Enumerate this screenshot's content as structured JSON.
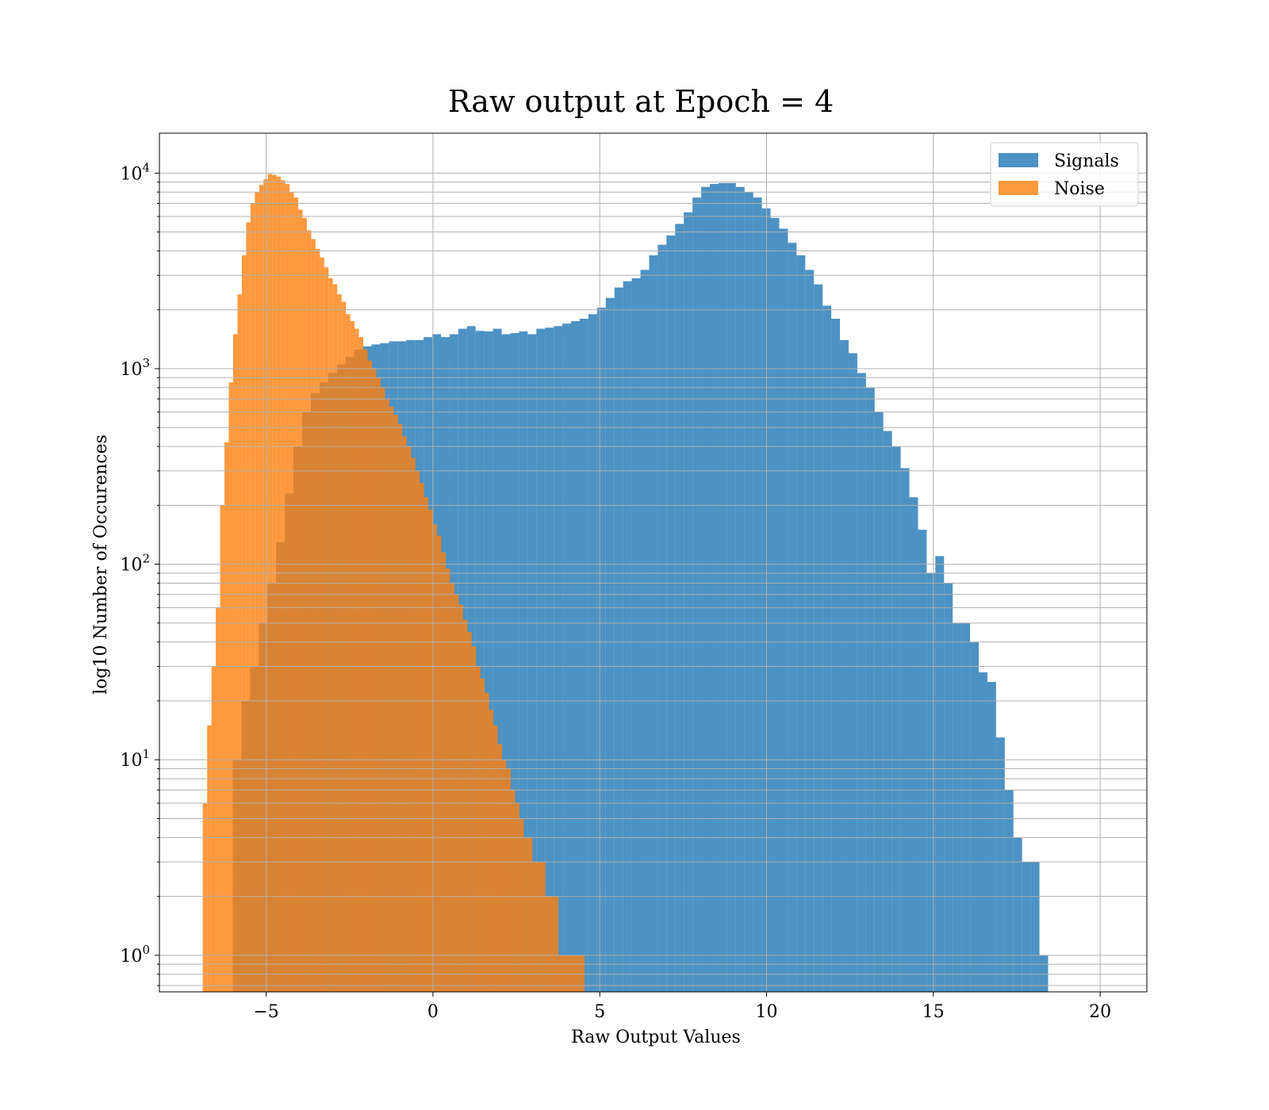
{
  "chart_data": {
    "type": "bar",
    "title": "Raw output at Epoch = 4",
    "xlabel": "Raw Output Values",
    "ylabel": "log10 Number of Occurences",
    "yscale": "log10",
    "xlim": [
      -8.2,
      21.4
    ],
    "ylim": [
      0.65,
      16000
    ],
    "xticks": [
      -5,
      0,
      5,
      10,
      15,
      20
    ],
    "xtick_labels": [
      "−5",
      "0",
      "5",
      "10",
      "15",
      "20"
    ],
    "ytick_decades": [
      {
        "base": "10",
        "exp": "0",
        "value": 1
      },
      {
        "base": "10",
        "exp": "1",
        "value": 10
      },
      {
        "base": "10",
        "exp": "2",
        "value": 100
      },
      {
        "base": "10",
        "exp": "3",
        "value": 1000
      },
      {
        "base": "10",
        "exp": "4",
        "value": 10000
      }
    ],
    "grid": true,
    "legend_position": "top-right",
    "series": [
      {
        "name": "Signals",
        "color": "#1f77b4",
        "opacity": 0.8,
        "start": -6.0,
        "bin_width": 0.26,
        "values": [
          10,
          20,
          30,
          50,
          80,
          130,
          230,
          400,
          600,
          750,
          850,
          950,
          1050,
          1150,
          1250,
          1300,
          1330,
          1350,
          1380,
          1380,
          1400,
          1400,
          1450,
          1500,
          1450,
          1500,
          1600,
          1650,
          1560,
          1550,
          1600,
          1500,
          1520,
          1550,
          1500,
          1600,
          1620,
          1650,
          1700,
          1750,
          1800,
          1900,
          2050,
          2300,
          2600,
          2800,
          2900,
          3200,
          3800,
          4300,
          4800,
          5500,
          6300,
          7500,
          8500,
          8800,
          8900,
          8900,
          8500,
          8000,
          7500,
          6600,
          5900,
          5200,
          4400,
          3800,
          3200,
          2700,
          2100,
          1800,
          1400,
          1200,
          950,
          800,
          600,
          480,
          400,
          310,
          220,
          150,
          90,
          110,
          80,
          50,
          50,
          40,
          28,
          25,
          13,
          7,
          4,
          3,
          3,
          1
        ]
      },
      {
        "name": "Noise",
        "color": "#ff7f0e",
        "opacity": 0.8,
        "start": -6.9,
        "bin_width": 0.13,
        "values": [
          6,
          15,
          30,
          60,
          200,
          420,
          850,
          1500,
          2400,
          3800,
          5600,
          7000,
          8000,
          8700,
          9300,
          9900,
          9800,
          9600,
          9200,
          8800,
          8000,
          7500,
          6500,
          5900,
          5100,
          4600,
          4100,
          3700,
          3300,
          2900,
          2700,
          2400,
          2200,
          1900,
          1750,
          1600,
          1450,
          1250,
          1100,
          1000,
          900,
          800,
          700,
          640,
          580,
          520,
          450,
          400,
          350,
          300,
          260,
          220,
          190,
          160,
          140,
          115,
          95,
          80,
          70,
          62,
          52,
          45,
          38,
          30,
          26,
          22,
          18,
          15,
          12,
          10,
          9,
          7,
          6,
          5,
          4,
          4,
          3,
          3,
          3,
          2,
          2,
          2,
          1,
          1,
          1,
          1,
          1,
          1
        ]
      }
    ]
  }
}
